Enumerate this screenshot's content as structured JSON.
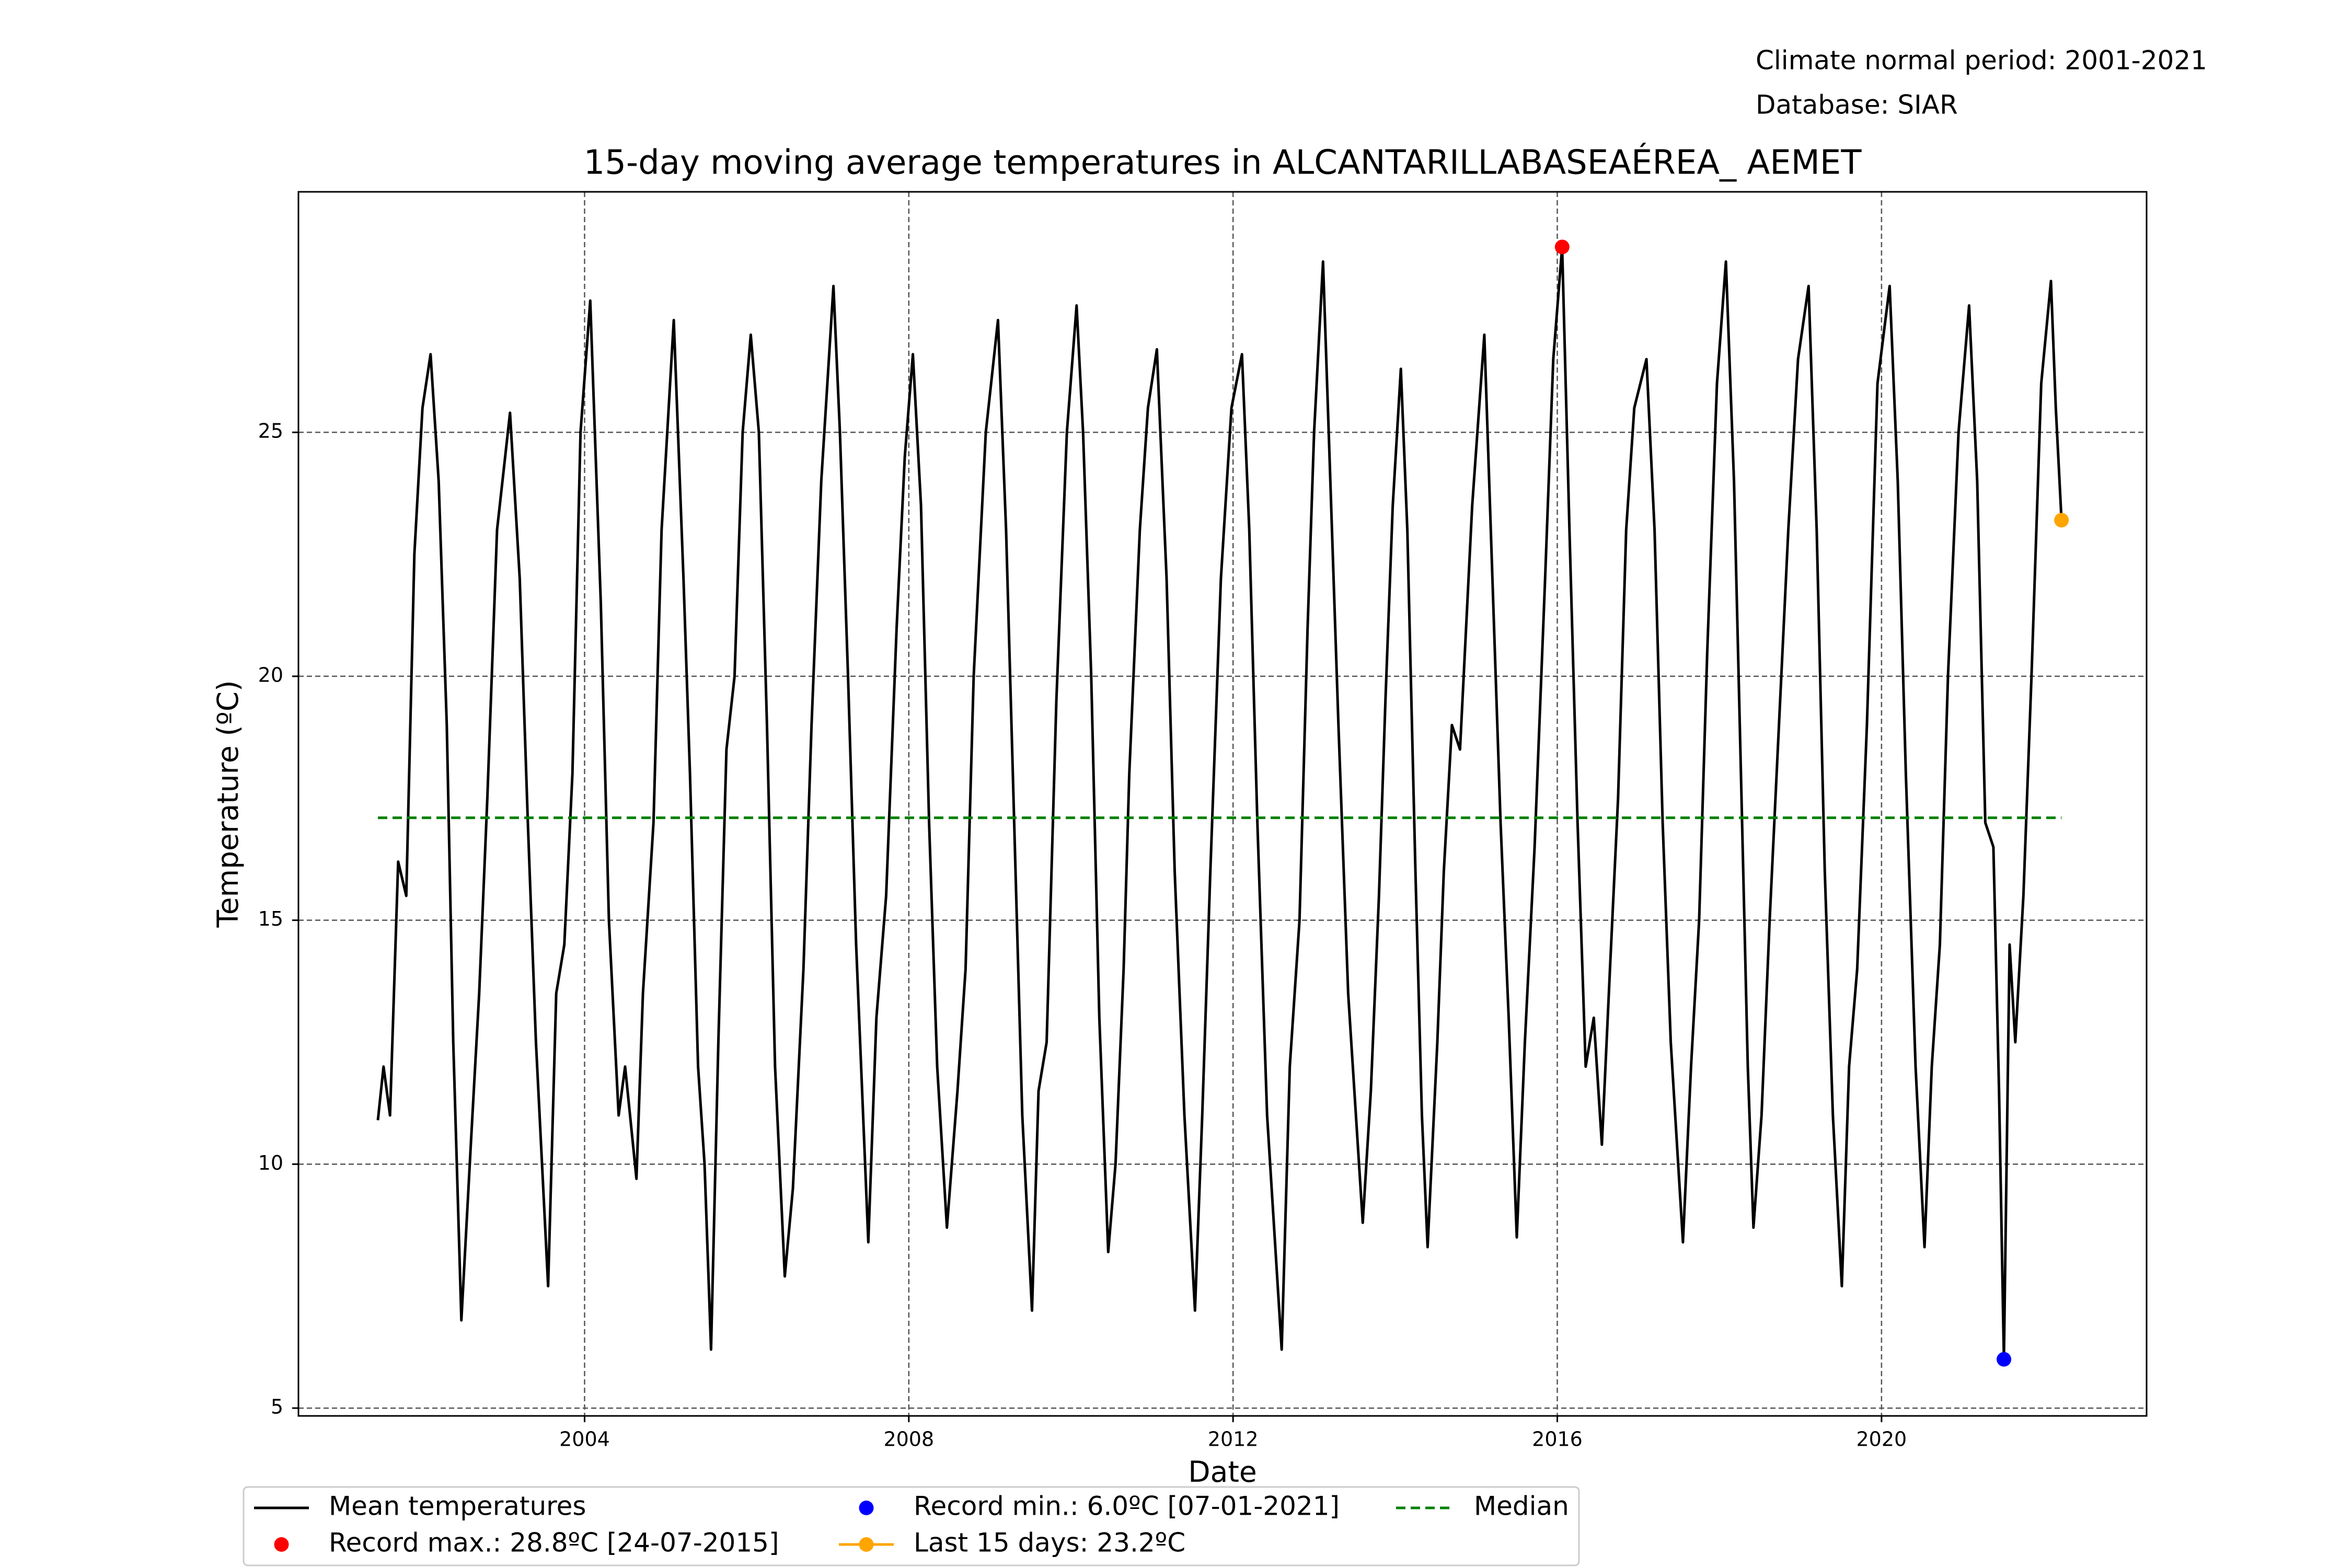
{
  "chart_data": {
    "type": "line",
    "title": "15-day moving average temperatures in ALCANTARILLABASEAÉREA_ AEMET",
    "annotations": [
      "Climate normal period: 2001-2021",
      "Database: SIAR"
    ],
    "x_label": "Date",
    "y_label": "Temperature (ºC)",
    "xlim": [
      2000.47,
      2023.27
    ],
    "xticks": [
      2004,
      2008,
      2012,
      2016,
      2020
    ],
    "ylim": [
      4.84,
      29.93
    ],
    "yticks": [
      5,
      10,
      15,
      20,
      25
    ],
    "grid": true,
    "legend_location": "lower center",
    "legend_columns": 3,
    "x": [
      2001.45,
      2001.52,
      2001.6,
      2001.7,
      2001.8,
      2001.9,
      2002.0,
      2002.1,
      2002.2,
      2002.3,
      2002.38,
      2002.48,
      2002.6,
      2002.7,
      2002.8,
      2002.92,
      2003.08,
      2003.2,
      2003.3,
      2003.4,
      2003.55,
      2003.65,
      2003.75,
      2003.85,
      2003.95,
      2004.07,
      2004.2,
      2004.3,
      2004.42,
      2004.5,
      2004.64,
      2004.72,
      2004.85,
      2004.95,
      2005.1,
      2005.22,
      2005.3,
      2005.4,
      2005.48,
      2005.56,
      2005.65,
      2005.75,
      2005.85,
      2005.95,
      2006.05,
      2006.15,
      2006.25,
      2006.35,
      2006.47,
      2006.57,
      2006.7,
      2006.8,
      2006.92,
      2007.07,
      2007.15,
      2007.25,
      2007.35,
      2007.5,
      2007.6,
      2007.72,
      2007.85,
      2007.95,
      2008.05,
      2008.15,
      2008.25,
      2008.35,
      2008.47,
      2008.6,
      2008.7,
      2008.8,
      2008.95,
      2009.1,
      2009.2,
      2009.3,
      2009.4,
      2009.52,
      2009.6,
      2009.7,
      2009.82,
      2009.95,
      2010.07,
      2010.15,
      2010.25,
      2010.35,
      2010.46,
      2010.55,
      2010.65,
      2010.72,
      2010.85,
      2010.95,
      2011.06,
      2011.18,
      2011.28,
      2011.4,
      2011.53,
      2011.62,
      2011.72,
      2011.85,
      2011.98,
      2012.11,
      2012.2,
      2012.3,
      2012.42,
      2012.6,
      2012.7,
      2012.82,
      2012.92,
      2013.0,
      2013.11,
      2013.2,
      2013.3,
      2013.42,
      2013.6,
      2013.7,
      2013.8,
      2013.88,
      2013.97,
      2014.07,
      2014.15,
      2014.25,
      2014.33,
      2014.4,
      2014.52,
      2014.6,
      2014.7,
      2014.8,
      2014.95,
      2015.1,
      2015.2,
      2015.3,
      2015.4,
      2015.5,
      2015.6,
      2015.72,
      2015.85,
      2015.95,
      2016.06,
      2016.15,
      2016.25,
      2016.35,
      2016.45,
      2016.55,
      2016.65,
      2016.75,
      2016.85,
      2016.95,
      2017.1,
      2017.2,
      2017.3,
      2017.4,
      2017.55,
      2017.65,
      2017.75,
      2017.85,
      2017.97,
      2018.08,
      2018.18,
      2018.28,
      2018.35,
      2018.42,
      2018.52,
      2018.62,
      2018.72,
      2018.85,
      2018.97,
      2019.1,
      2019.2,
      2019.3,
      2019.4,
      2019.51,
      2019.6,
      2019.7,
      2019.82,
      2019.95,
      2020.1,
      2020.2,
      2020.3,
      2020.42,
      2020.53,
      2020.62,
      2020.72,
      2020.82,
      2020.95,
      2021.08,
      2021.18,
      2021.28,
      2021.38,
      2021.45,
      2021.51,
      2021.58,
      2021.65,
      2021.75,
      2021.85,
      2021.97,
      2022.09,
      2022.15,
      2022.22
    ],
    "series": [
      {
        "name": "Mean temperatures",
        "color": "#000000",
        "style": "line",
        "values": [
          10.9,
          12.0,
          11.0,
          16.2,
          15.5,
          22.5,
          25.5,
          26.6,
          24.0,
          19.0,
          12.5,
          6.8,
          10.5,
          13.5,
          17.5,
          23.0,
          25.4,
          22.0,
          17.0,
          12.5,
          7.5,
          13.5,
          14.5,
          18.0,
          25.0,
          27.7,
          21.5,
          15.0,
          11.0,
          12.0,
          9.7,
          13.5,
          17.0,
          23.0,
          27.3,
          22.0,
          18.0,
          12.0,
          10.0,
          6.2,
          12.5,
          18.5,
          20.0,
          25.0,
          27.0,
          25.0,
          19.0,
          12.0,
          7.7,
          9.5,
          14.0,
          19.0,
          24.0,
          28.0,
          25.0,
          20.0,
          14.5,
          8.4,
          13.0,
          15.5,
          21.0,
          24.5,
          26.6,
          23.5,
          17.0,
          12.0,
          8.7,
          11.5,
          14.0,
          20.0,
          25.0,
          27.3,
          23.0,
          17.0,
          11.0,
          7.0,
          11.5,
          12.5,
          19.5,
          25.0,
          27.6,
          25.0,
          20.0,
          13.0,
          8.2,
          10.0,
          14.0,
          18.0,
          23.0,
          25.5,
          26.7,
          22.0,
          16.0,
          11.0,
          7.0,
          11.0,
          16.0,
          22.0,
          25.5,
          26.6,
          23.0,
          17.0,
          11.0,
          6.2,
          12.0,
          15.0,
          21.0,
          25.0,
          28.5,
          24.0,
          19.0,
          13.5,
          8.8,
          11.5,
          15.5,
          19.5,
          23.5,
          26.3,
          23.0,
          16.0,
          11.0,
          8.3,
          12.5,
          16.0,
          19.0,
          18.5,
          23.5,
          27.0,
          22.0,
          17.0,
          13.0,
          8.5,
          12.5,
          16.5,
          22.0,
          26.5,
          28.8,
          23.0,
          17.0,
          12.0,
          13.0,
          10.4,
          14.0,
          17.5,
          23.0,
          25.5,
          26.5,
          23.0,
          17.0,
          12.5,
          8.4,
          12.0,
          15.0,
          20.5,
          26.0,
          28.5,
          24.0,
          17.0,
          12.0,
          8.7,
          11.0,
          15.0,
          18.5,
          23.0,
          26.5,
          28.0,
          23.0,
          16.0,
          11.0,
          7.5,
          12.0,
          14.0,
          19.0,
          26.0,
          28.0,
          24.0,
          18.0,
          12.0,
          8.3,
          12.0,
          14.5,
          20.0,
          25.0,
          27.6,
          24.0,
          17.0,
          16.5,
          11.5,
          6.0,
          14.5,
          12.5,
          15.5,
          20.0,
          26.0,
          28.1,
          25.5,
          23.2
        ]
      },
      {
        "name": "Record max.: 28.8ºC [24-07-2015]",
        "color": "#ff0000",
        "style": "point",
        "x": [
          2016.06
        ],
        "values": [
          28.8
        ]
      },
      {
        "name": "Record min.: 6.0ºC [07-01-2021]",
        "color": "#0000ff",
        "style": "point",
        "x": [
          2021.51
        ],
        "values": [
          6.0
        ]
      },
      {
        "name": "Last 15 days: 23.2ºC",
        "color": "#ffa500",
        "style": "line-point",
        "x": [
          2022.22
        ],
        "values": [
          23.2
        ]
      },
      {
        "name": "Median",
        "color": "#008000",
        "style": "dashed",
        "x": [
          2001.45,
          2022.22
        ],
        "values": [
          17.1,
          17.1
        ]
      }
    ]
  }
}
